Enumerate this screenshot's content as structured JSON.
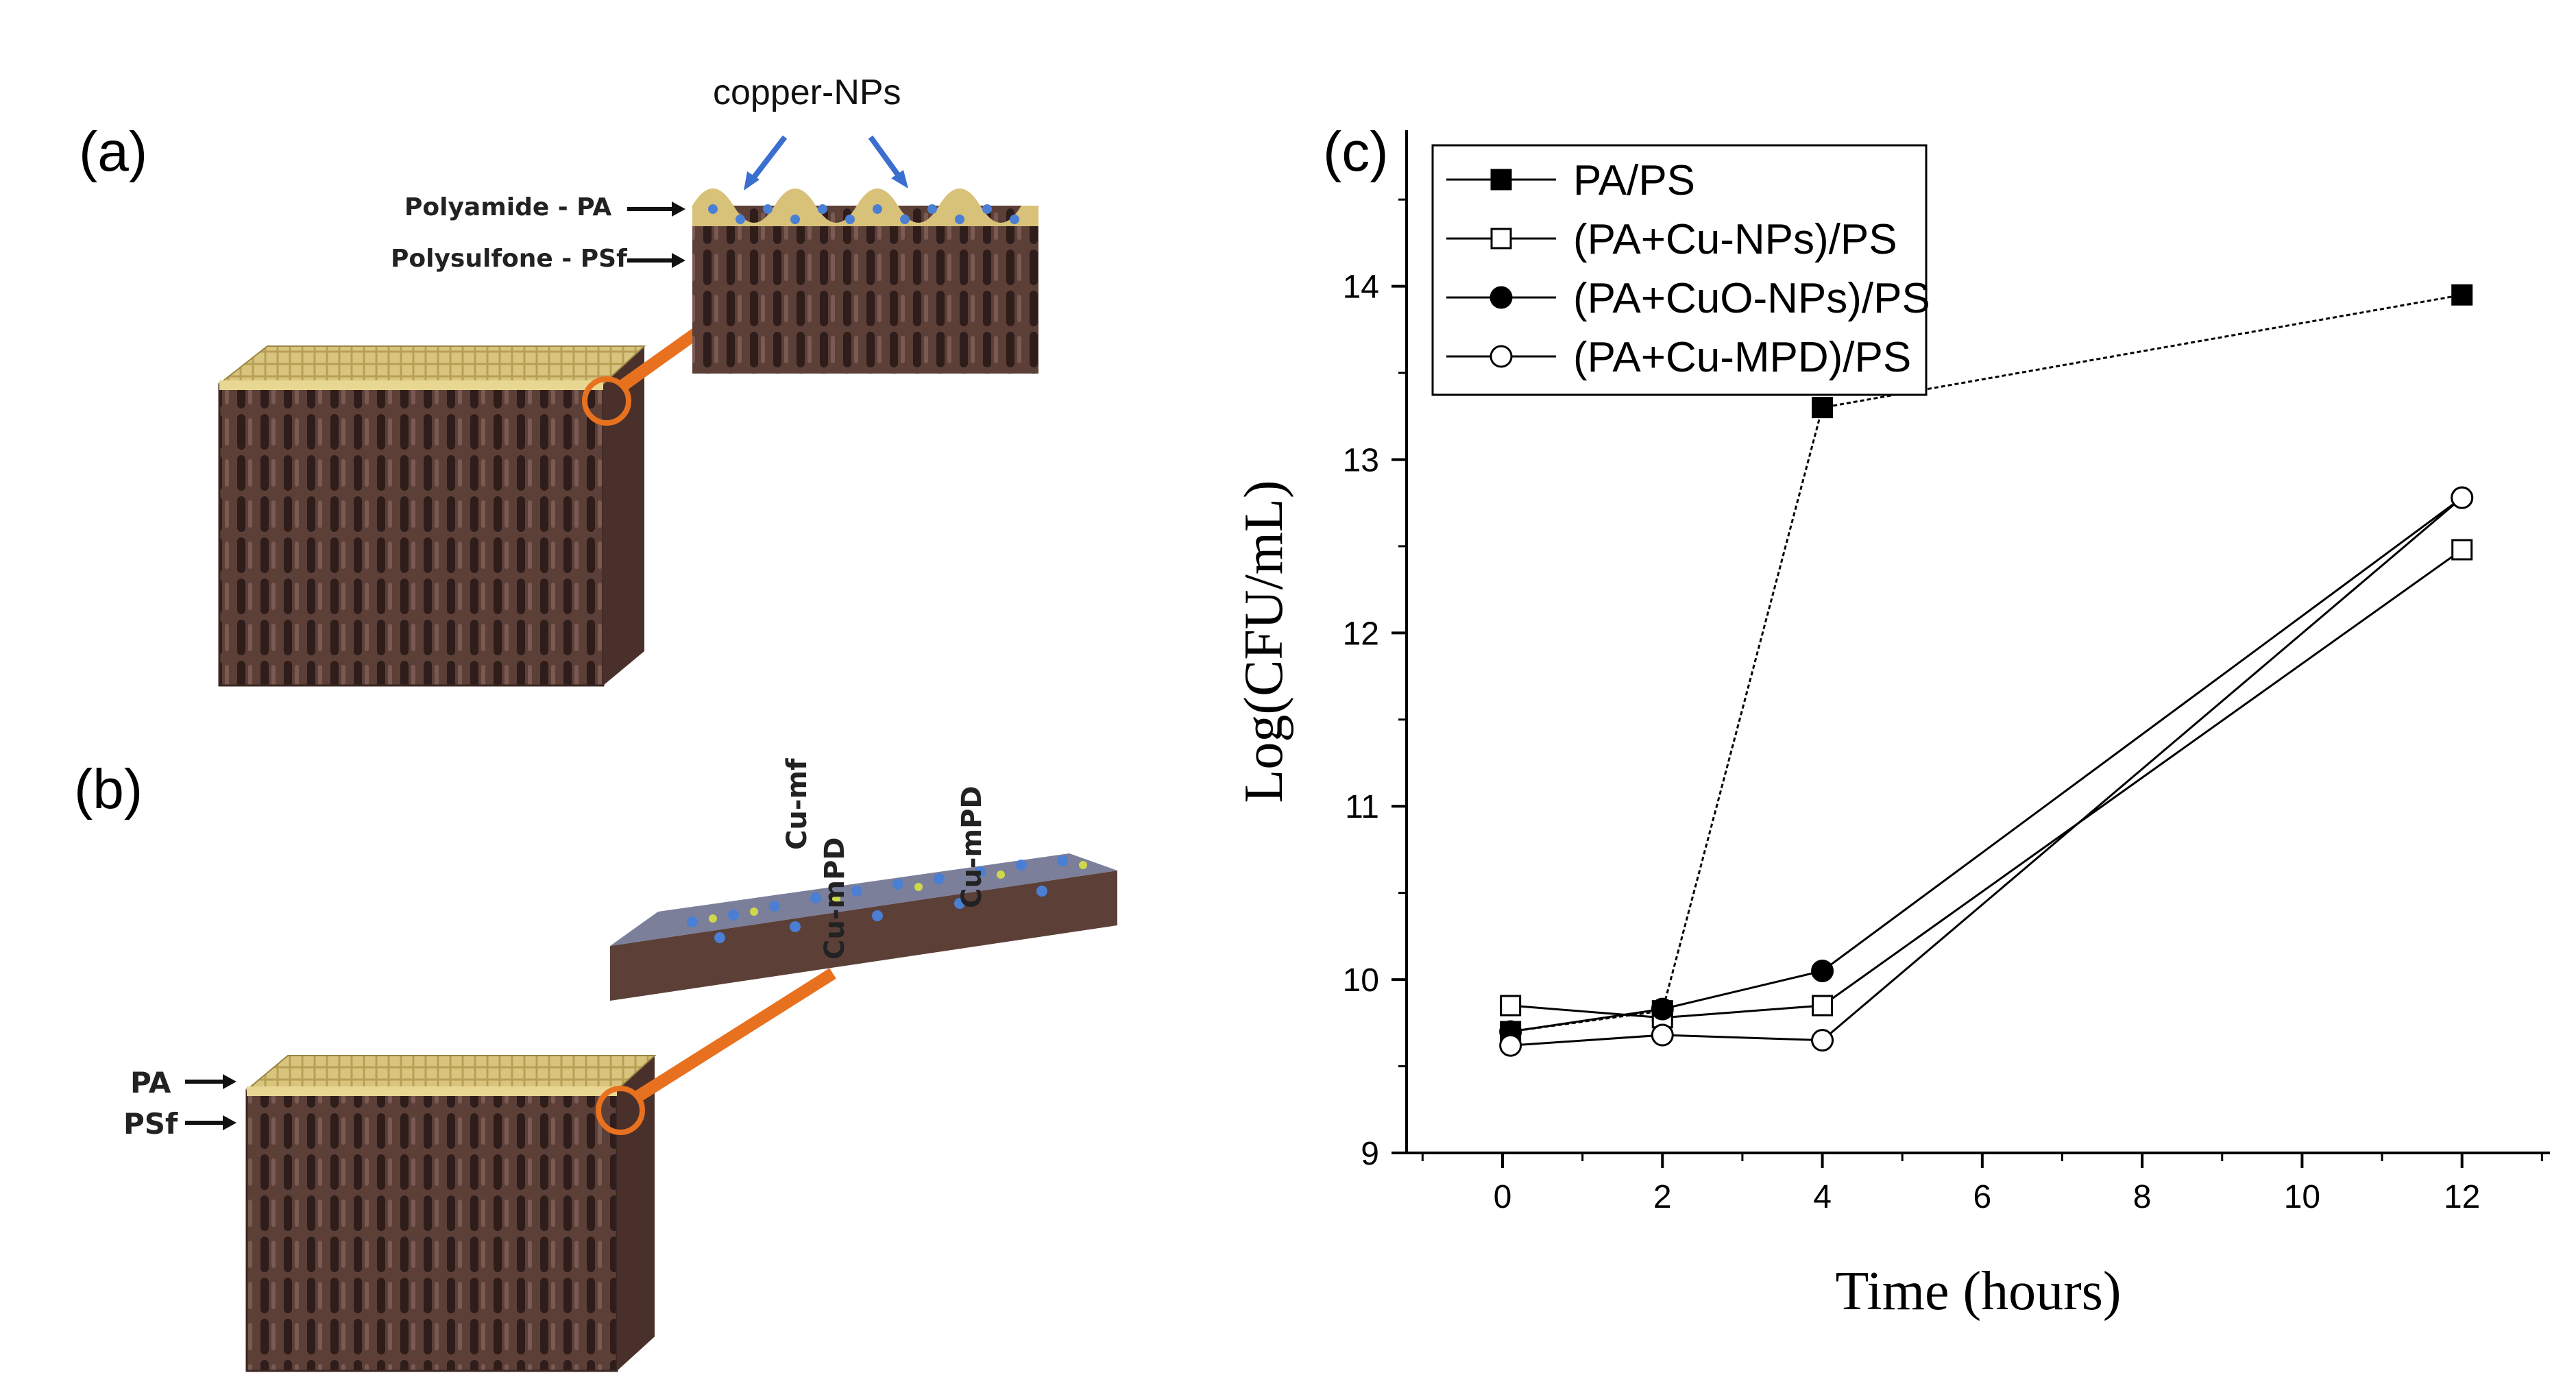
{
  "figure": {
    "panel_a": {
      "label": "(a)",
      "nps_label": "copper-NPs",
      "pa_label": "Polyamide - PA",
      "psf_label": "Polysulfone - PSf"
    },
    "panel_b": {
      "label": "(b)",
      "pa_label": "PA",
      "psf_label": "PSf",
      "cu_labels": [
        "Cu-mf",
        "Cu-mPD",
        "Cu-mPD"
      ]
    },
    "panel_c": {
      "label": "(c)"
    },
    "colors": {
      "membrane_top": "#d8c27a",
      "membrane_body": "#5a3d36",
      "connector": "#e8711f",
      "np_dot": "#4a7fd4"
    }
  },
  "chart_data": {
    "type": "line",
    "xlabel": "Time (hours)",
    "ylabel": "Log(CFU/mL)",
    "xlim": [
      -1.2,
      13.1
    ],
    "ylim": [
      9,
      14.9
    ],
    "xticks": [
      0,
      2,
      4,
      6,
      8,
      10,
      12
    ],
    "yticks": [
      9,
      10,
      11,
      12,
      13,
      14
    ],
    "legend_position": "top-left",
    "series": [
      {
        "name": "PA/PS",
        "marker": "square-filled",
        "x": [
          0.1,
          2,
          4,
          12
        ],
        "y": [
          9.7,
          9.82,
          13.3,
          13.95
        ]
      },
      {
        "name": "(PA+Cu-NPs)/PS",
        "marker": "square-open",
        "x": [
          0.1,
          2,
          4,
          12
        ],
        "y": [
          9.85,
          9.78,
          9.85,
          12.48
        ]
      },
      {
        "name": "(PA+CuO-NPs)/PS",
        "marker": "circle-filled",
        "x": [
          0.1,
          2,
          4,
          12
        ],
        "y": [
          9.7,
          9.83,
          10.05,
          12.78
        ]
      },
      {
        "name": "(PA+Cu-MPD)/PS",
        "marker": "circle-open",
        "x": [
          0.1,
          2,
          4,
          12
        ],
        "y": [
          9.62,
          9.68,
          9.65,
          12.78
        ]
      }
    ]
  }
}
